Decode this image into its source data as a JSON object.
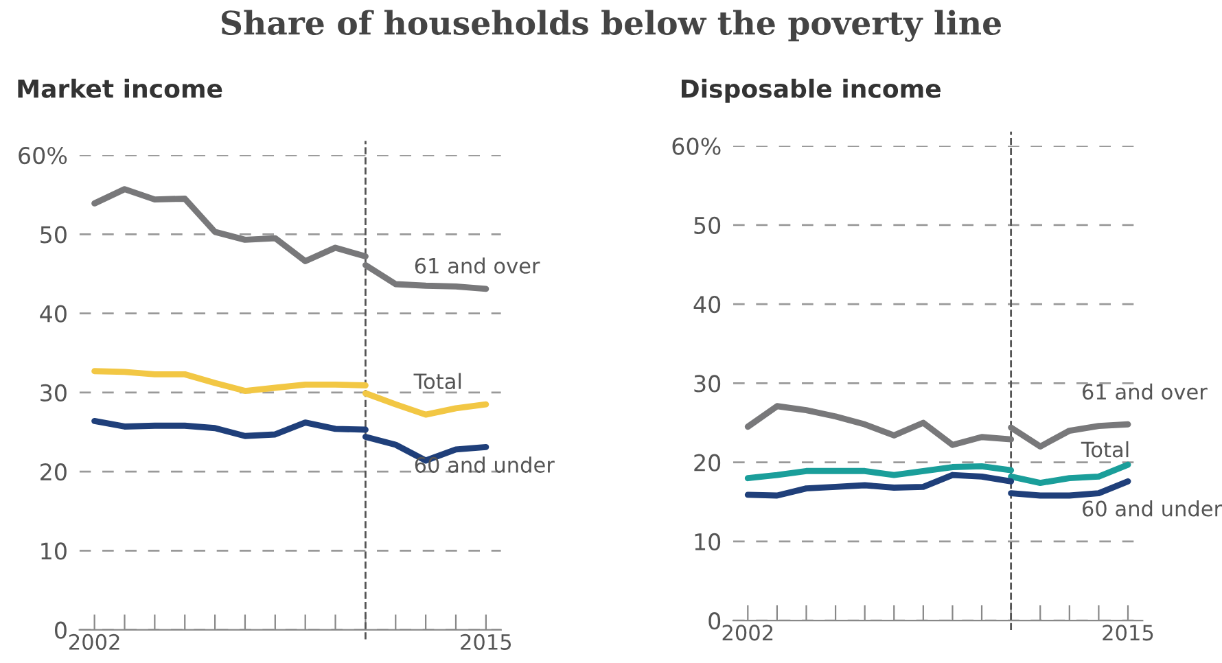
{
  "chart_data": [
    {
      "type": "line",
      "title": "Share of households below the poverty line",
      "subtitle": "Market income",
      "series": [
        {
          "color": "#78787a",
          "x": [
            2002,
            2003,
            2004,
            2005,
            2006,
            2007,
            2008,
            2009,
            2010,
            2011
          ],
          "values": [
            53.9,
            55.7,
            54.4,
            54.5,
            50.3,
            49.3,
            49.5,
            46.6,
            48.3,
            47.2
          ]
        },
        {
          "name": "61 and over",
          "color": "#78787a",
          "x": [
            2011,
            2012,
            2013,
            2014,
            2015
          ],
          "values": [
            46.1,
            43.7,
            43.5,
            43.4,
            43.1
          ]
        },
        {
          "color": "#f2c744",
          "x": [
            2002,
            2003,
            2004,
            2005,
            2006,
            2007,
            2008,
            2009,
            2010,
            2011
          ],
          "values": [
            32.7,
            32.6,
            32.3,
            32.3,
            31.2,
            30.2,
            30.6,
            31.0,
            31.0,
            30.9
          ]
        },
        {
          "name": "Total",
          "color": "#f2c744",
          "x": [
            2011,
            2012,
            2013,
            2014,
            2015
          ],
          "values": [
            29.9,
            28.5,
            27.2,
            28.0,
            28.5
          ]
        },
        {
          "color": "#1f3f7a",
          "x": [
            2002,
            2003,
            2004,
            2005,
            2006,
            2007,
            2008,
            2009,
            2010,
            2011
          ],
          "values": [
            26.4,
            25.7,
            25.8,
            25.8,
            25.5,
            24.5,
            24.7,
            26.2,
            25.4,
            25.3
          ]
        },
        {
          "name": "60 and under",
          "color": "#1f3f7a",
          "x": [
            2011,
            2012,
            2013,
            2014,
            2015
          ],
          "values": [
            24.4,
            23.4,
            21.4,
            22.8,
            23.1
          ]
        }
      ],
      "xlim": [
        2001.5,
        2015.5
      ],
      "xticks": [
        2002,
        {
          "value": 2003,
          "label": null
        },
        {
          "value": 2004,
          "label": null
        },
        {
          "value": 2005,
          "label": null
        },
        {
          "value": 2006,
          "label": null
        },
        {
          "value": 2007,
          "label": null
        },
        {
          "value": 2008,
          "label": null
        },
        {
          "value": 2009,
          "label": null
        },
        {
          "value": 2010,
          "label": null
        },
        {
          "value": 2011,
          "label": null
        },
        {
          "value": 2012,
          "label": null
        },
        {
          "value": 2013,
          "label": null
        },
        {
          "value": 2014,
          "label": null
        },
        2015
      ],
      "ylim": [
        0,
        60
      ],
      "yticks": [
        0,
        10,
        20,
        30,
        40,
        50,
        {
          "value": 60,
          "label": "60%"
        }
      ],
      "grid": "y",
      "line_style": "solid",
      "marker": "none",
      "legend": false,
      "ref_lines": [
        {
          "axis": "x",
          "value": 2011,
          "color": "#555555",
          "line_style": "dashed"
        }
      ]
    },
    {
      "type": "line",
      "subtitle": "Disposable income",
      "series": [
        {
          "color": "#78787a",
          "x": [
            2002,
            2003,
            2004,
            2005,
            2006,
            2007,
            2008,
            2009,
            2010,
            2011
          ],
          "values": [
            24.5,
            27.1,
            26.6,
            25.8,
            24.8,
            23.4,
            25.0,
            22.2,
            23.2,
            22.9
          ]
        },
        {
          "name": "61 and over",
          "color": "#78787a",
          "x": [
            2011,
            2012,
            2013,
            2014,
            2015
          ],
          "values": [
            24.4,
            22.0,
            24.0,
            24.6,
            24.8
          ]
        },
        {
          "color": "#1a9e9a",
          "x": [
            2002,
            2003,
            2004,
            2005,
            2006,
            2007,
            2008,
            2009,
            2010,
            2011
          ],
          "values": [
            18.0,
            18.4,
            18.9,
            18.9,
            18.9,
            18.4,
            18.9,
            19.4,
            19.5,
            19.0
          ]
        },
        {
          "name": "Total",
          "color": "#1a9e9a",
          "x": [
            2011,
            2012,
            2013,
            2014,
            2015
          ],
          "values": [
            18.2,
            17.4,
            18.0,
            18.2,
            19.7
          ]
        },
        {
          "color": "#1f3f7a",
          "x": [
            2002,
            2003,
            2004,
            2005,
            2006,
            2007,
            2008,
            2009,
            2010,
            2011
          ],
          "values": [
            15.9,
            15.8,
            16.7,
            16.9,
            17.1,
            16.8,
            16.9,
            18.4,
            18.2,
            17.6
          ]
        },
        {
          "name": "60 and under",
          "color": "#1f3f7a",
          "x": [
            2011,
            2012,
            2013,
            2014,
            2015
          ],
          "values": [
            16.1,
            15.8,
            15.8,
            16.1,
            17.6
          ]
        }
      ],
      "xlim": [
        2001.5,
        2015.5
      ],
      "xticks": [
        2002,
        {
          "value": 2003,
          "label": null
        },
        {
          "value": 2004,
          "label": null
        },
        {
          "value": 2005,
          "label": null
        },
        {
          "value": 2006,
          "label": null
        },
        {
          "value": 2007,
          "label": null
        },
        {
          "value": 2008,
          "label": null
        },
        {
          "value": 2009,
          "label": null
        },
        {
          "value": 2010,
          "label": null
        },
        {
          "value": 2011,
          "label": null
        },
        {
          "value": 2012,
          "label": null
        },
        {
          "value": 2013,
          "label": null
        },
        {
          "value": 2014,
          "label": null
        },
        2015
      ],
      "ylim": [
        0,
        60
      ],
      "yticks": [
        0,
        10,
        20,
        30,
        40,
        50,
        {
          "value": 60,
          "label": "60%"
        }
      ],
      "grid": "y",
      "line_style": "solid",
      "marker": "none",
      "legend": false,
      "ref_lines": [
        {
          "axis": "x",
          "value": 2011,
          "color": "#555555",
          "line_style": "dashed"
        }
      ]
    }
  ]
}
